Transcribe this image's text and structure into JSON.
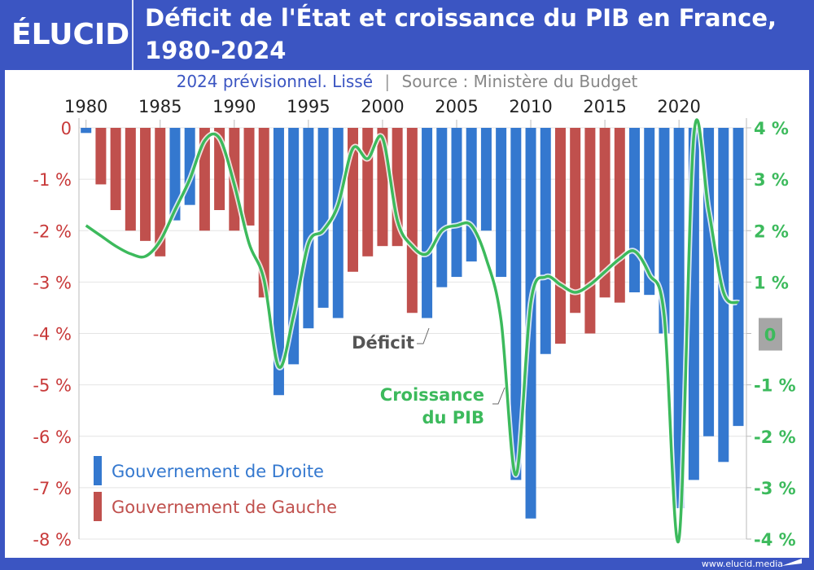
{
  "header": {
    "logo": "ÉLUCID",
    "title_line1": "Déficit de l'État et croissance du PIB en France,",
    "title_line2": "1980-2024"
  },
  "subtitle": {
    "note": "2024 prévisionnel. Lissé",
    "separator": "|",
    "source": "Source : Ministère du Budget"
  },
  "footer": "www.elucid.media",
  "colors": {
    "droite": "#3478cf",
    "gauche": "#c0504d",
    "growth": "#3cba5c",
    "frame": "#3b55c2"
  },
  "chart_data": {
    "type": "bar+line",
    "title": "Déficit de l'État et croissance du PIB en France, 1980-2024",
    "x_ticks": [
      "1980",
      "1985",
      "1990",
      "1995",
      "2000",
      "2005",
      "2010",
      "2015",
      "2020"
    ],
    "years": [
      1980,
      1981,
      1982,
      1983,
      1984,
      1985,
      1986,
      1987,
      1988,
      1989,
      1990,
      1991,
      1992,
      1993,
      1994,
      1995,
      1996,
      1997,
      1998,
      1999,
      2000,
      2001,
      2002,
      2003,
      2004,
      2005,
      2006,
      2007,
      2008,
      2009,
      2010,
      2011,
      2012,
      2013,
      2014,
      2015,
      2016,
      2017,
      2018,
      2019,
      2020,
      2021,
      2022,
      2023,
      2024
    ],
    "left_axis": {
      "ylim": [
        -8,
        0
      ],
      "ticks": [
        "0",
        "-1 %",
        "-2 %",
        "-3 %",
        "-4 %",
        "-5 %",
        "-6 %",
        "-7 %",
        "-8 %"
      ]
    },
    "right_axis": {
      "ylim": [
        -4,
        4
      ],
      "ticks": [
        "4 %",
        "3 %",
        "2 %",
        "1 %",
        "0",
        "-1 %",
        "-2 %",
        "-3 %",
        "-4 %"
      ]
    },
    "deficit": {
      "name": "Déficit",
      "values": [
        -0.1,
        -1.1,
        -1.6,
        -2.0,
        -2.2,
        -2.5,
        -1.8,
        -1.5,
        -2.0,
        -1.6,
        -2.0,
        -1.9,
        -3.3,
        -5.2,
        -4.6,
        -3.9,
        -3.5,
        -3.7,
        -2.8,
        -2.5,
        -2.3,
        -2.3,
        -3.6,
        -3.7,
        -3.1,
        -2.9,
        -2.6,
        -2.0,
        -2.9,
        -6.85,
        -7.6,
        -4.4,
        -4.2,
        -3.6,
        -4.0,
        -3.3,
        -3.4,
        -3.2,
        -3.25,
        -4.0,
        -7.4,
        -6.85,
        -6.0,
        -6.5,
        -5.8
      ],
      "government": [
        "D",
        "G",
        "G",
        "G",
        "G",
        "G",
        "D",
        "D",
        "G",
        "G",
        "G",
        "G",
        "G",
        "D",
        "D",
        "D",
        "D",
        "D",
        "G",
        "G",
        "G",
        "G",
        "G",
        "D",
        "D",
        "D",
        "D",
        "D",
        "D",
        "D",
        "D",
        "D",
        "G",
        "G",
        "G",
        "G",
        "G",
        "D",
        "D",
        "D",
        "D",
        "D",
        "D",
        "D",
        "D"
      ]
    },
    "growth": {
      "name": "Croissance du PIB",
      "values": [
        2.1,
        1.9,
        1.7,
        1.55,
        1.5,
        1.8,
        2.4,
        3.0,
        3.75,
        3.8,
        2.9,
        1.75,
        1.05,
        -0.65,
        0.35,
        1.75,
        2.0,
        2.5,
        3.6,
        3.4,
        3.8,
        2.2,
        1.7,
        1.55,
        2.0,
        2.1,
        2.1,
        1.45,
        0.25,
        -2.75,
        0.6,
        1.1,
        0.95,
        0.8,
        0.95,
        1.2,
        1.45,
        1.6,
        1.15,
        0.35,
        -4.0,
        3.85,
        2.4,
        0.8,
        0.6
      ]
    },
    "legend": [
      {
        "label": "Gouvernement de Droite",
        "key": "D"
      },
      {
        "label": "Gouvernement de Gauche",
        "key": "G"
      }
    ],
    "annotations": {
      "deficit": "Déficit",
      "growth_line1": "Croissance",
      "growth_line2": "du PIB"
    },
    "legend_position": "bottom-left",
    "grid": true
  }
}
